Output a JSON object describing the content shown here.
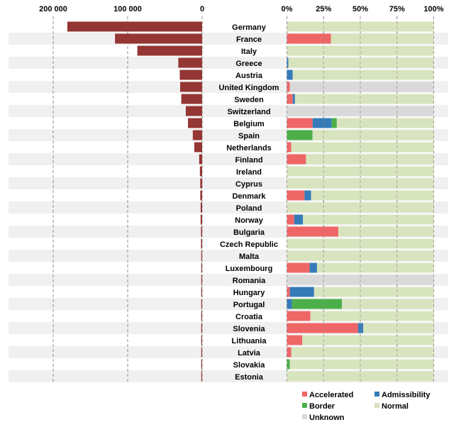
{
  "chart_data": [
    {
      "type": "bar",
      "orientation": "horizontal",
      "direction": "right-to-left",
      "title": "",
      "xlabel": "",
      "ylabel": "",
      "xlim": [
        0,
        200000
      ],
      "x_ticks": [
        200000,
        100000,
        0
      ],
      "x_tick_labels": [
        "200 000",
        "100 000",
        "0"
      ],
      "grid": "vertical dashed",
      "color": "#943634",
      "categories": [
        "Germany",
        "France",
        "Italy",
        "Greece",
        "Austria",
        "United Kingdom",
        "Sweden",
        "Switzerland",
        "Belgium",
        "Spain",
        "Netherlands",
        "Finland",
        "Ireland",
        "Cyprus",
        "Denmark",
        "Poland",
        "Norway",
        "Bulgaria",
        "Czech Republic",
        "Malta",
        "Luxembourg",
        "Romania",
        "Hungary",
        "Portugal",
        "Croatia",
        "Slovenia",
        "Lithuania",
        "Latvia",
        "Slovakia",
        "Estonia"
      ],
      "values": [
        181000,
        117000,
        87000,
        32000,
        30000,
        29500,
        28000,
        22000,
        19000,
        12500,
        10500,
        4000,
        3000,
        2500,
        2500,
        2000,
        2000,
        1500,
        1500,
        1200,
        1100,
        1000,
        900,
        800,
        700,
        600,
        500,
        400,
        300,
        200
      ]
    },
    {
      "type": "bar",
      "orientation": "horizontal",
      "stacked": "percent",
      "title": "",
      "xlim": [
        0,
        100
      ],
      "x_ticks": [
        0,
        25,
        50,
        75,
        100
      ],
      "x_tick_labels": [
        "0%",
        "25%",
        "50%",
        "75%",
        "100%"
      ],
      "grid": "vertical dashed",
      "legend": "bottom",
      "categories": [
        "Germany",
        "France",
        "Italy",
        "Greece",
        "Austria",
        "United Kingdom",
        "Sweden",
        "Switzerland",
        "Belgium",
        "Spain",
        "Netherlands",
        "Finland",
        "Ireland",
        "Cyprus",
        "Denmark",
        "Poland",
        "Norway",
        "Bulgaria",
        "Czech Republic",
        "Malta",
        "Luxembourg",
        "Romania",
        "Hungary",
        "Portugal",
        "Croatia",
        "Slovenia",
        "Lithuania",
        "Latvia",
        "Slovakia",
        "Estonia"
      ],
      "series": [
        {
          "name": "Accelerated",
          "color": "#ef6666",
          "values": [
            0,
            30,
            0,
            0,
            0,
            2,
            4,
            0,
            17.5,
            0,
            3,
            13,
            0,
            0,
            12,
            0,
            5,
            35,
            0,
            0,
            15.5,
            0,
            2,
            0,
            16,
            48.5,
            10.5,
            3,
            0,
            0
          ]
        },
        {
          "name": "Admissibility",
          "color": "#357bb8",
          "values": [
            0,
            0,
            0,
            1,
            4,
            0,
            1.5,
            0,
            13,
            0,
            0,
            0,
            0,
            0,
            4.5,
            0,
            6,
            0,
            0,
            0,
            5,
            0,
            16.5,
            3.5,
            0,
            3.5,
            0,
            0,
            0,
            0
          ]
        },
        {
          "name": "Border",
          "color": "#4daf4a",
          "values": [
            0,
            0,
            0,
            0,
            0,
            0,
            0,
            0,
            3.5,
            17.5,
            0,
            0,
            0,
            0,
            0,
            0,
            0,
            0,
            0,
            0,
            0,
            0,
            0,
            34,
            0,
            0,
            0,
            0,
            2,
            0
          ]
        },
        {
          "name": "Normal",
          "color": "#d7e4bd",
          "values": [
            100,
            70,
            100,
            99,
            96,
            0,
            94.5,
            0,
            66,
            82.5,
            97,
            87,
            100,
            100,
            83.5,
            100,
            89,
            65,
            100,
            100,
            79.5,
            0,
            81.5,
            62.5,
            84,
            48,
            89.5,
            97,
            98,
            100
          ]
        },
        {
          "name": "Unknown",
          "color": "#d9d9d9",
          "values": [
            0,
            0,
            0,
            0,
            0,
            98,
            0,
            100,
            0,
            0,
            0,
            0,
            0,
            0,
            0,
            0,
            0,
            0,
            0,
            0,
            0,
            100,
            0,
            0,
            0,
            0,
            0,
            0,
            0,
            0
          ]
        }
      ]
    }
  ]
}
